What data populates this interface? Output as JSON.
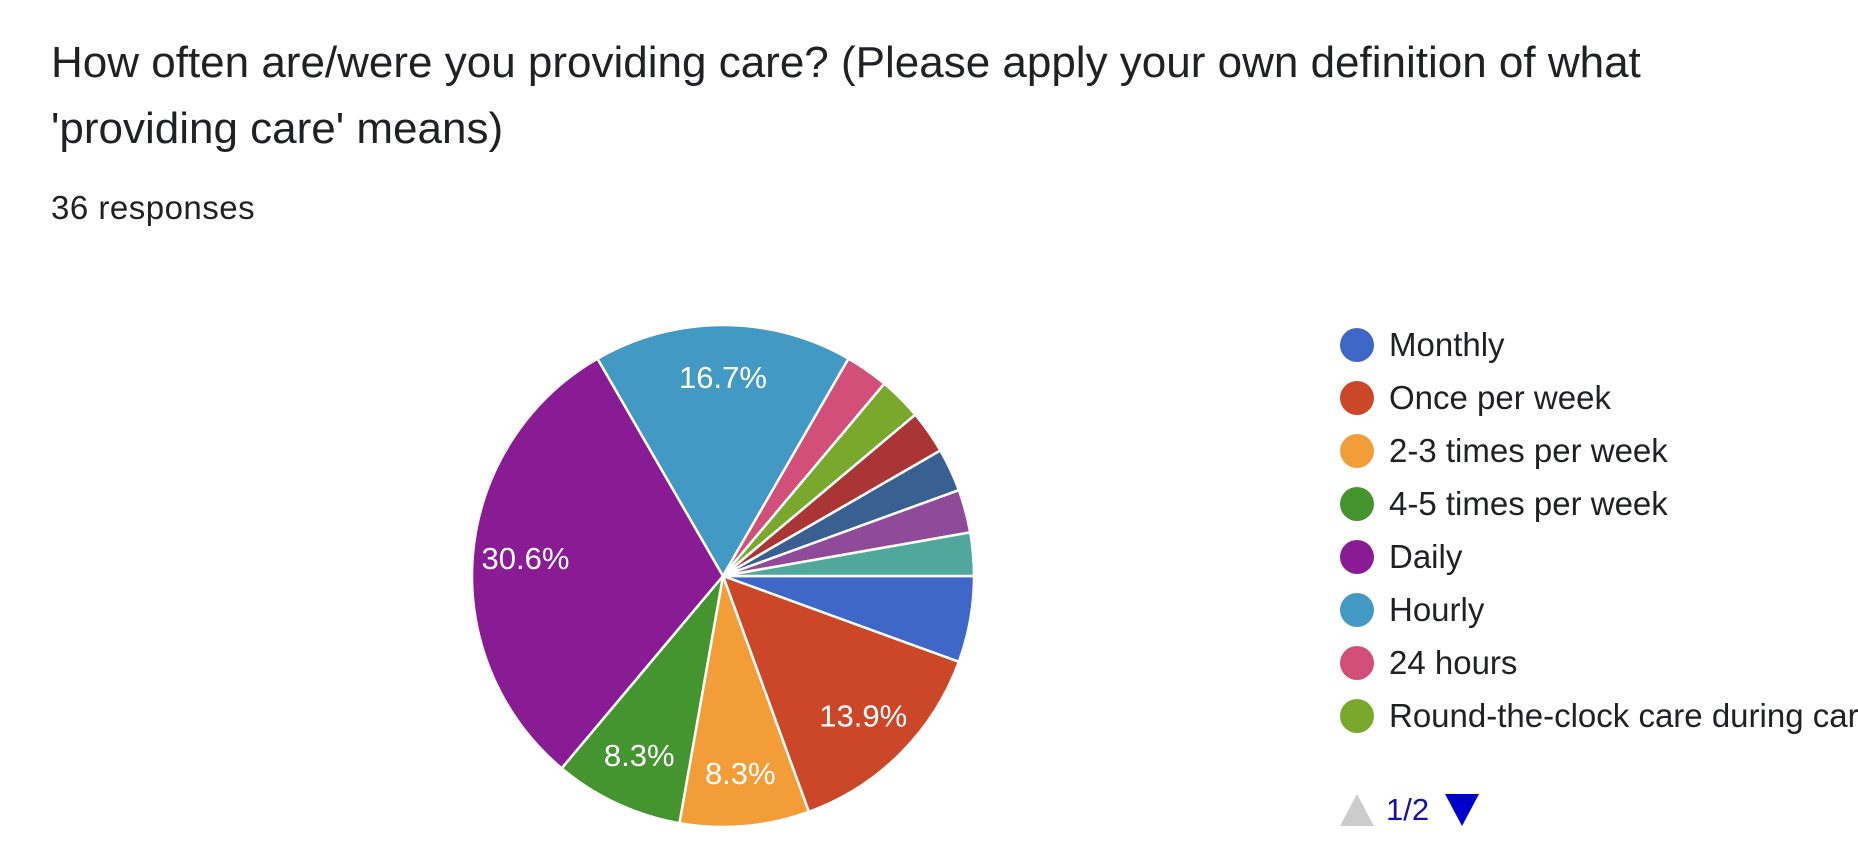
{
  "header": {
    "title": "How often are/were you providing care? (Please apply your own definition of what 'providing care' means)",
    "responses": "36 responses"
  },
  "chart_data": {
    "type": "pie",
    "slices": [
      {
        "name": "Monthly",
        "value": 2,
        "percent_label": "",
        "color": "#3f67c8"
      },
      {
        "name": "Once per week",
        "value": 5,
        "percent_label": "13.9%",
        "color": "#cc4727"
      },
      {
        "name": "2-3 times per week",
        "value": 3,
        "percent_label": "8.3%",
        "color": "#f29d38"
      },
      {
        "name": "4-5 times per week",
        "value": 3,
        "percent_label": "8.3%",
        "color": "#44942f"
      },
      {
        "name": "Daily",
        "value": 11,
        "percent_label": "30.6%",
        "color": "#891b94"
      },
      {
        "name": "Hourly",
        "value": 6,
        "percent_label": "16.7%",
        "color": "#4299c4"
      },
      {
        "name": "24 hours",
        "value": 1,
        "percent_label": "",
        "color": "#d24f7a"
      },
      {
        "name": "Round-the-clock care during care",
        "value": 1,
        "percent_label": "",
        "color": "#7aa82c"
      },
      {
        "name": "",
        "value": 1,
        "percent_label": "",
        "color": "#a93635"
      },
      {
        "name": "",
        "value": 1,
        "percent_label": "",
        "color": "#3a5f91"
      },
      {
        "name": "",
        "value": 1,
        "percent_label": "",
        "color": "#904a9a"
      },
      {
        "name": "",
        "value": 1,
        "percent_label": "",
        "color": "#4fa89b"
      }
    ],
    "start_angle_deg": 90,
    "direction": "clockwise",
    "legend_position": "right",
    "legend_visible_count": 8
  },
  "legend": {
    "items": [
      {
        "label": "Monthly",
        "color": "#3f67c8"
      },
      {
        "label": "Once per week",
        "color": "#cc4727"
      },
      {
        "label": "2-3 times per week",
        "color": "#f29d38"
      },
      {
        "label": "4-5 times per week",
        "color": "#44942f"
      },
      {
        "label": "Daily",
        "color": "#891b94"
      },
      {
        "label": "Hourly",
        "color": "#4299c4"
      },
      {
        "label": "24 hours",
        "color": "#d24f7a"
      },
      {
        "label": "Round-the-clock care during care",
        "color": "#7aa82c"
      }
    ]
  },
  "pager": {
    "text": "1/2",
    "up_icon": "triangle-up-icon",
    "down_icon": "triangle-down-icon",
    "up_color": "#cccccc",
    "down_color": "#0000cc"
  }
}
